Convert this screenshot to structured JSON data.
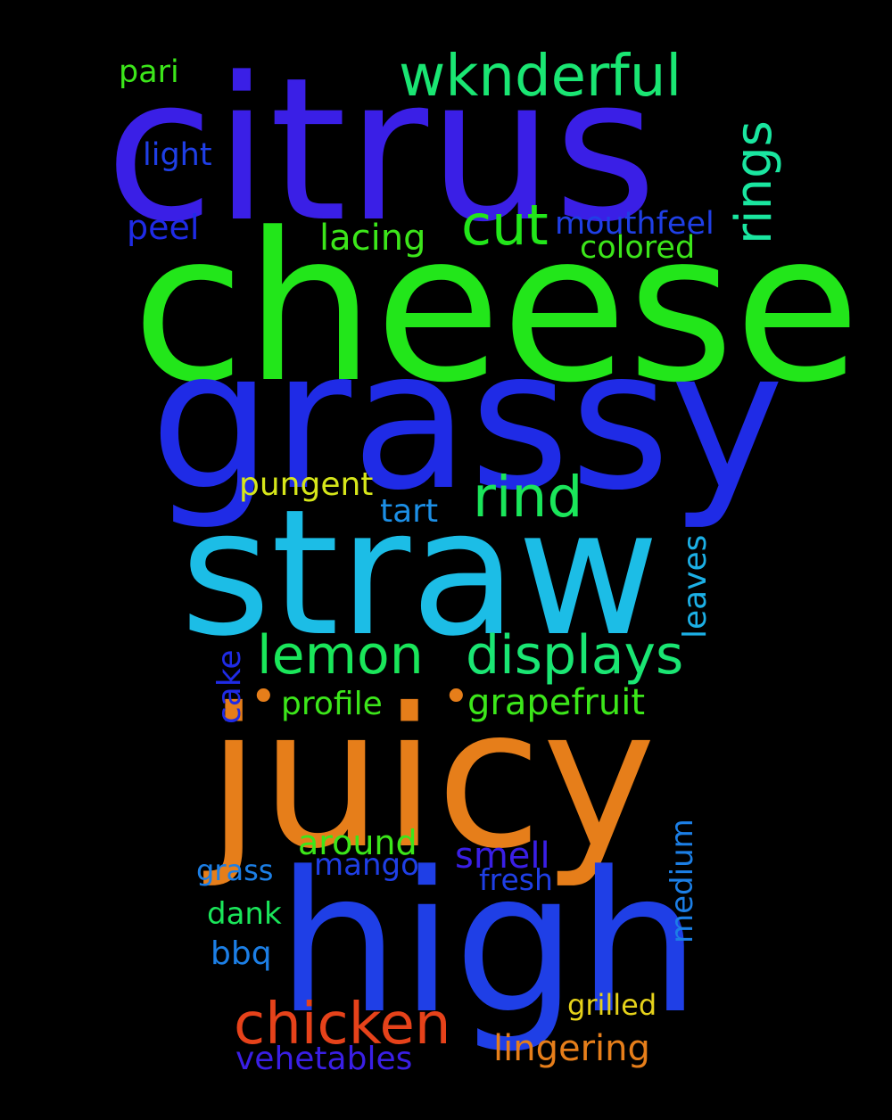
{
  "background": "#000000",
  "words": {
    "citrus": {
      "text": "citrus",
      "color": "#3a1fe6"
    },
    "cheese": {
      "text": "cheese",
      "color": "#22e61a"
    },
    "grassy": {
      "text": "grassy",
      "color": "#1f2be6"
    },
    "straw": {
      "text": "straw",
      "color": "#1cbde6"
    },
    "juicy": {
      "text": "juicy",
      "color": "#e67e1a"
    },
    "high": {
      "text": "high",
      "color": "#1f3fe6"
    },
    "wknderful": {
      "text": "wknderful",
      "color": "#1ae673"
    },
    "rings": {
      "text": "rings",
      "color": "#1ae6a0"
    },
    "pari": {
      "text": "pari",
      "color": "#3ce61a"
    },
    "light": {
      "text": "light",
      "color": "#1f3fe6"
    },
    "cut": {
      "text": "cut",
      "color": "#22e61a"
    },
    "mouthfeel": {
      "text": "mouthfeel",
      "color": "#1f3fe6"
    },
    "peel": {
      "text": "peel",
      "color": "#1f2be6"
    },
    "lacing": {
      "text": "lacing",
      "color": "#3ce61a"
    },
    "colored": {
      "text": "colored",
      "color": "#3ce61a"
    },
    "pungent": {
      "text": "pungent",
      "color": "#d6e61a"
    },
    "rind": {
      "text": "rind",
      "color": "#1ae65a"
    },
    "tart": {
      "text": "tart",
      "color": "#1c8fe6"
    },
    "leaves": {
      "text": "leaves",
      "color": "#1cb0e6"
    },
    "lemon": {
      "text": "lemon",
      "color": "#1ae65a"
    },
    "displays": {
      "text": "displays",
      "color": "#1ae673"
    },
    "cake": {
      "text": "cake",
      "color": "#1f2be6"
    },
    "dot1": {
      "text": "•",
      "color": "#e67e1a"
    },
    "profile": {
      "text": "profile",
      "color": "#3ce61a"
    },
    "dot2": {
      "text": "•",
      "color": "#e67e1a"
    },
    "grapefruit": {
      "text": "grapefruit",
      "color": "#3ce61a"
    },
    "medium": {
      "text": "medium",
      "color": "#1c7fe6"
    },
    "around": {
      "text": "around",
      "color": "#3ce61a"
    },
    "smell": {
      "text": "smell",
      "color": "#3a1fe6"
    },
    "mango": {
      "text": "mango",
      "color": "#1f3fe6"
    },
    "grass": {
      "text": "grass",
      "color": "#1c7fe6"
    },
    "fresh": {
      "text": "fresh",
      "color": "#1f3fe6"
    },
    "dank": {
      "text": "dank",
      "color": "#1ae65a"
    },
    "bbq": {
      "text": "bbq",
      "color": "#1c7fe6"
    },
    "chicken": {
      "text": "chicken",
      "color": "#e6421a"
    },
    "grilled": {
      "text": "grilled",
      "color": "#e6d21a"
    },
    "lingering": {
      "text": "lingering",
      "color": "#e67e1a"
    },
    "vehetables": {
      "text": "vehetables",
      "color": "#3a1fe6"
    }
  }
}
